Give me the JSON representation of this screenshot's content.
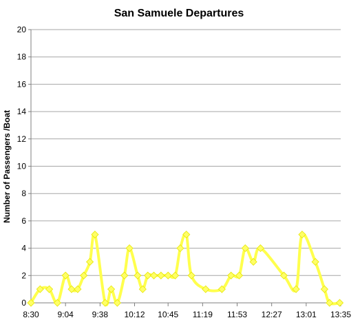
{
  "chart_data": {
    "type": "line",
    "title": "San Samuele Departures",
    "xlabel": "",
    "ylabel": "Number of Passengers /Boat",
    "ylim": [
      0,
      20
    ],
    "yticks": [
      "0",
      "2",
      "4",
      "6",
      "8",
      "10",
      "12",
      "14",
      "16",
      "18",
      "20"
    ],
    "xlim": [
      "8:30",
      "13:35"
    ],
    "xticks": [
      "8:30",
      "9:04",
      "9:38",
      "10:12",
      "10:45",
      "11:19",
      "11:53",
      "12:27",
      "13:01",
      "13:35"
    ],
    "grid": true,
    "legend": "none",
    "series": [
      {
        "color": "#ffff4d",
        "points": [
          {
            "x": "8:30",
            "y": 0
          },
          {
            "x": "8:39",
            "y": 1
          },
          {
            "x": "8:48",
            "y": 1
          },
          {
            "x": "8:56",
            "y": 0
          },
          {
            "x": "9:04",
            "y": 2
          },
          {
            "x": "9:10",
            "y": 1
          },
          {
            "x": "9:16",
            "y": 1
          },
          {
            "x": "9:22",
            "y": 2
          },
          {
            "x": "9:28",
            "y": 3
          },
          {
            "x": "9:33",
            "y": 5
          },
          {
            "x": "9:43",
            "y": 0
          },
          {
            "x": "9:49",
            "y": 1
          },
          {
            "x": "9:55",
            "y": 0
          },
          {
            "x": "10:02",
            "y": 2
          },
          {
            "x": "10:07",
            "y": 4
          },
          {
            "x": "10:15",
            "y": 2
          },
          {
            "x": "10:20",
            "y": 1
          },
          {
            "x": "10:25",
            "y": 2
          },
          {
            "x": "10:31",
            "y": 2
          },
          {
            "x": "10:38",
            "y": 2
          },
          {
            "x": "10:45",
            "y": 2
          },
          {
            "x": "10:52",
            "y": 2
          },
          {
            "x": "10:57",
            "y": 4
          },
          {
            "x": "11:03",
            "y": 5
          },
          {
            "x": "11:08",
            "y": 2
          },
          {
            "x": "11:22",
            "y": 1
          },
          {
            "x": "11:38",
            "y": 1
          },
          {
            "x": "11:47",
            "y": 2
          },
          {
            "x": "11:55",
            "y": 2
          },
          {
            "x": "12:01",
            "y": 4
          },
          {
            "x": "12:09",
            "y": 3
          },
          {
            "x": "12:16",
            "y": 4
          },
          {
            "x": "12:39",
            "y": 2
          },
          {
            "x": "12:51",
            "y": 1
          },
          {
            "x": "12:57",
            "y": 5
          },
          {
            "x": "13:10",
            "y": 3
          },
          {
            "x": "13:19",
            "y": 1
          },
          {
            "x": "13:24",
            "y": 0
          },
          {
            "x": "13:34",
            "y": 0
          }
        ]
      }
    ]
  }
}
